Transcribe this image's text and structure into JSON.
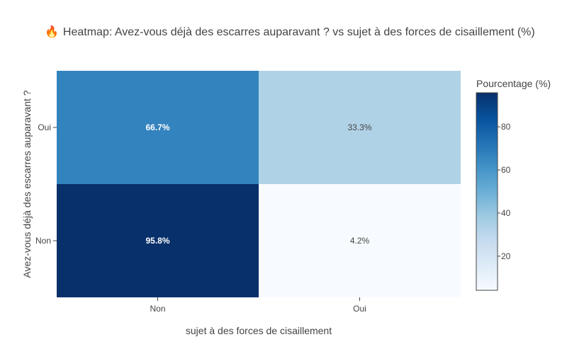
{
  "chart_data": {
    "type": "heatmap",
    "title_icon": "🔥",
    "title": "Heatmap: Avez-vous déjà des escarres auparavant ? vs sujet à des forces de cisaillement (%)",
    "xlabel": "sujet à des forces de cisaillement",
    "ylabel": "Avez-vous déjà des escarres auparavant ?",
    "x_categories": [
      "Non",
      "Oui"
    ],
    "y_categories": [
      "Oui",
      "Non"
    ],
    "values": [
      [
        66.7,
        33.3
      ],
      [
        95.8,
        4.2
      ]
    ],
    "cell_labels": [
      [
        "66.7%",
        "33.3%"
      ],
      [
        "95.8%",
        "4.2%"
      ]
    ],
    "colorscale": "Blues",
    "zmin": 4.2,
    "zmax": 95.8,
    "colorbar": {
      "title": "Pourcentage (%)",
      "ticks": [
        20,
        40,
        60,
        80
      ],
      "tick_labels": [
        "20",
        "40",
        "60",
        "80"
      ]
    }
  }
}
